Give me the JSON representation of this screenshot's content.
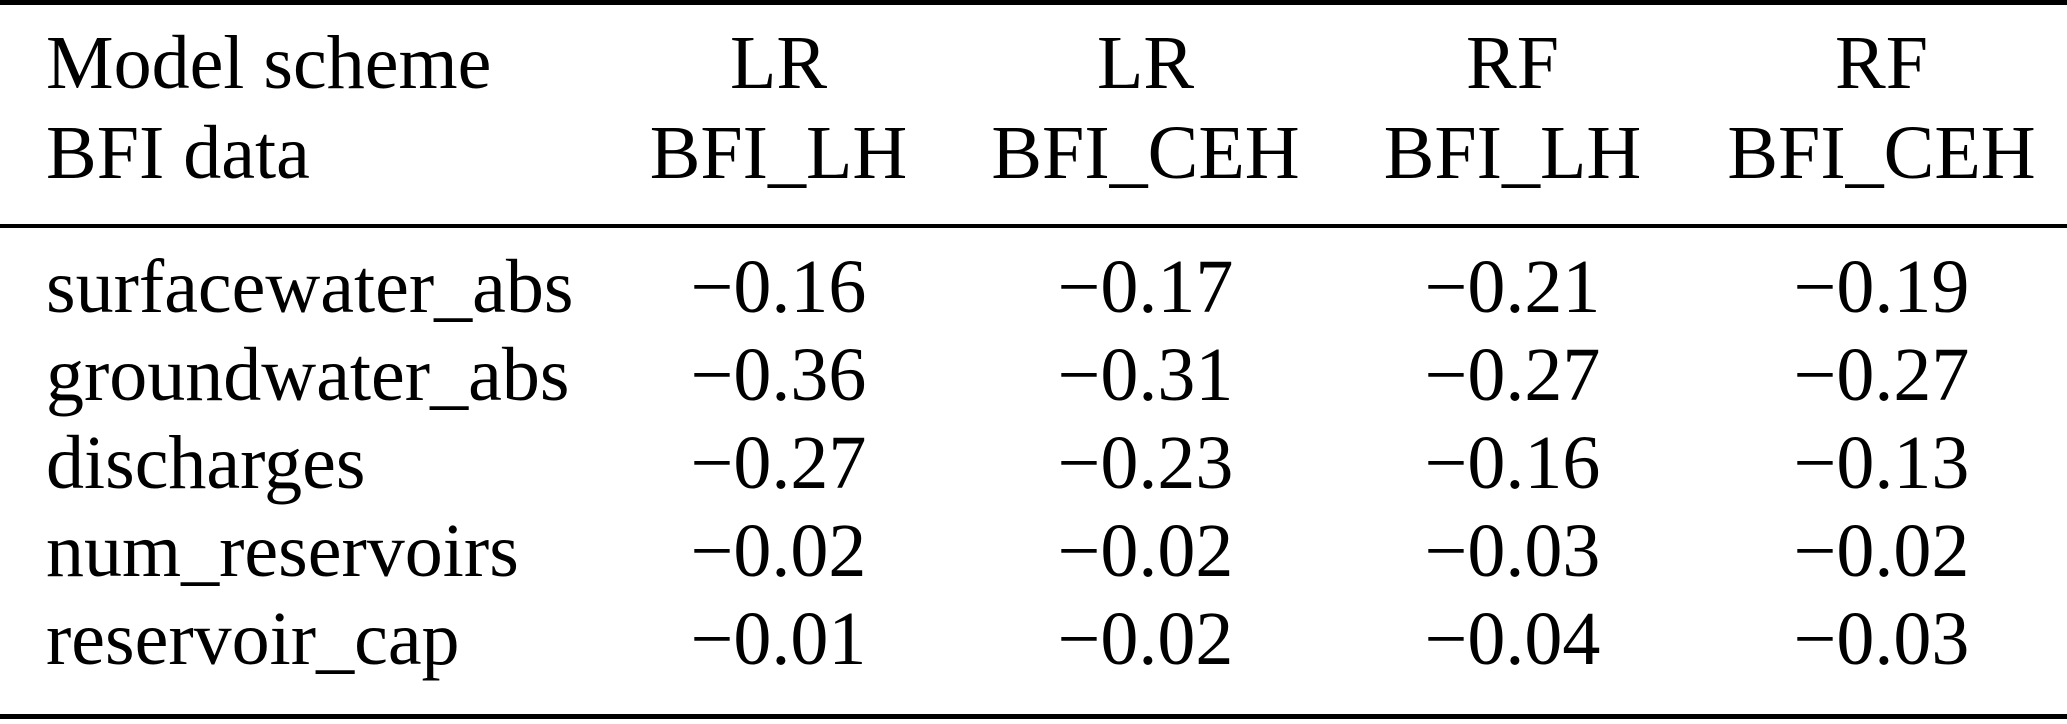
{
  "figure": {
    "type": "table",
    "description_colors": {
      "text": "#000000",
      "background": "#ffffff",
      "rule": "#000000"
    },
    "header": {
      "row_label_line1": "Model scheme",
      "row_label_line2": "BFI data",
      "columns": [
        {
          "scheme": "LR",
          "bfi": "BFI_LH"
        },
        {
          "scheme": "LR",
          "bfi": "BFI_CEH"
        },
        {
          "scheme": "RF",
          "bfi": "BFI_LH"
        },
        {
          "scheme": "RF",
          "bfi": "BFI_CEH"
        }
      ]
    },
    "rows": [
      {
        "label": "surfacewater_abs",
        "values": [
          "−0.16",
          "−0.17",
          "−0.21",
          "−0.19"
        ]
      },
      {
        "label": "groundwater_abs",
        "values": [
          "−0.36",
          "−0.31",
          "−0.27",
          "−0.27"
        ]
      },
      {
        "label": "discharges",
        "values": [
          "−0.27",
          "−0.23",
          "−0.16",
          "−0.13"
        ]
      },
      {
        "label": "num_reservoirs",
        "values": [
          "−0.02",
          "−0.02",
          "−0.03",
          "−0.02"
        ]
      },
      {
        "label": "reservoir_cap",
        "values": [
          "−0.01",
          "−0.02",
          "−0.04",
          "−0.03"
        ]
      }
    ]
  }
}
